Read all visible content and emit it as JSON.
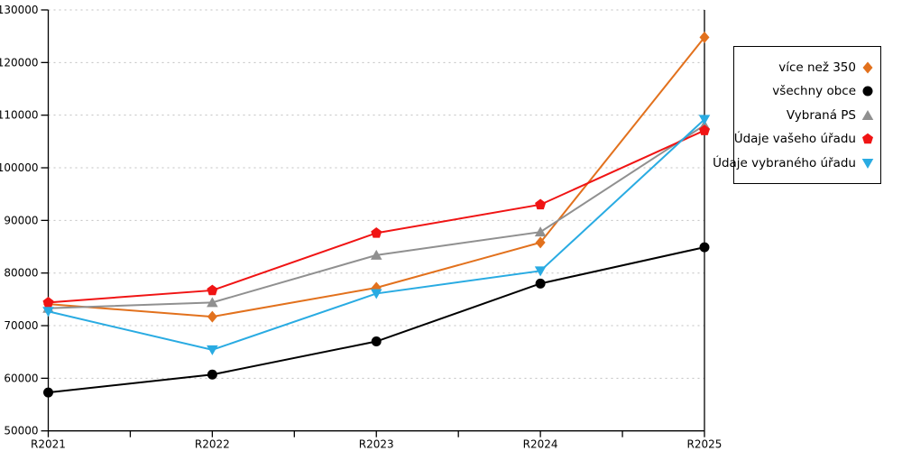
{
  "chart_data": {
    "type": "line",
    "title": "",
    "xlabel": "",
    "ylabel": "",
    "categories": [
      "R2021",
      "R2022",
      "R2023",
      "R2024",
      "R2025"
    ],
    "series": [
      {
        "name": "více než 350",
        "color": "#E2711D",
        "marker": "diamond",
        "values": [
          74100,
          71700,
          77200,
          85800,
          124800
        ]
      },
      {
        "name": "všechny obce",
        "color": "#000000",
        "marker": "circle",
        "values": [
          57300,
          60700,
          67000,
          78000,
          84900
        ]
      },
      {
        "name": "Vybraná PS",
        "color": "#909090",
        "marker": "triangle-up",
        "values": [
          73300,
          74400,
          83400,
          87800,
          108100
        ]
      },
      {
        "name": "Údaje vašeho úřadu",
        "color": "#F01414",
        "marker": "pentagon",
        "values": [
          74400,
          76700,
          87600,
          93000,
          107100
        ]
      },
      {
        "name": "Údaje vybraného úřadu",
        "color": "#29ABE2",
        "marker": "triangle-down",
        "values": [
          72700,
          65400,
          76100,
          80400,
          109200
        ]
      }
    ],
    "ylim": [
      50000,
      130000
    ],
    "ytick_step": 10000,
    "ytick_labels": [
      "50000",
      "60000",
      "70000",
      "80000",
      "90000",
      "100000",
      "110000",
      "120000",
      "130000"
    ],
    "grid": "horizontal-dotted",
    "gridline_color": "#C0C0C0",
    "axis_color": "#000000",
    "legend_position": "top-right"
  },
  "legend": {
    "items": [
      {
        "label": "více než 350"
      },
      {
        "label": "všechny obce"
      },
      {
        "label": "Vybraná PS"
      },
      {
        "label": "Údaje vašeho úřadu"
      },
      {
        "label": "Údaje vybraného úřadu"
      }
    ]
  }
}
